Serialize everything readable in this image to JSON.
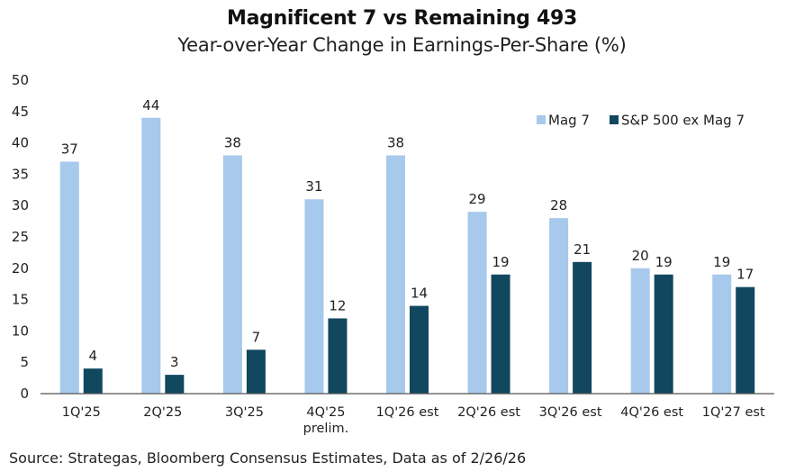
{
  "chart_data": {
    "type": "bar",
    "title": "Magnificent 7 vs Remaining 493",
    "subtitle": "Year-over-Year Change in Earnings-Per-Share (%)",
    "xlabel": "",
    "ylabel": "",
    "ylim": [
      0,
      50
    ],
    "yticks": [
      0,
      5,
      10,
      15,
      20,
      25,
      30,
      35,
      40,
      45,
      50
    ],
    "grid": false,
    "legend_position": "top-right",
    "categories": [
      [
        "1Q'25"
      ],
      [
        "2Q'25"
      ],
      [
        "3Q'25"
      ],
      [
        "4Q'25",
        "prelim."
      ],
      [
        "1Q'26 est"
      ],
      [
        "2Q'26 est"
      ],
      [
        "3Q'26 est"
      ],
      [
        "4Q'26 est"
      ],
      [
        "1Q'27 est"
      ]
    ],
    "series": [
      {
        "name": "Mag 7",
        "color": "#a7c9eb",
        "values": [
          37,
          44,
          38,
          31,
          38,
          29,
          28,
          20,
          19
        ]
      },
      {
        "name": "S&P 500 ex Mag 7",
        "color": "#11475f",
        "values": [
          4,
          3,
          7,
          12,
          14,
          19,
          21,
          19,
          17
        ]
      }
    ],
    "source": "Source: Strategas, Bloomberg Consensus Estimates, Data as of 2/26/26"
  }
}
